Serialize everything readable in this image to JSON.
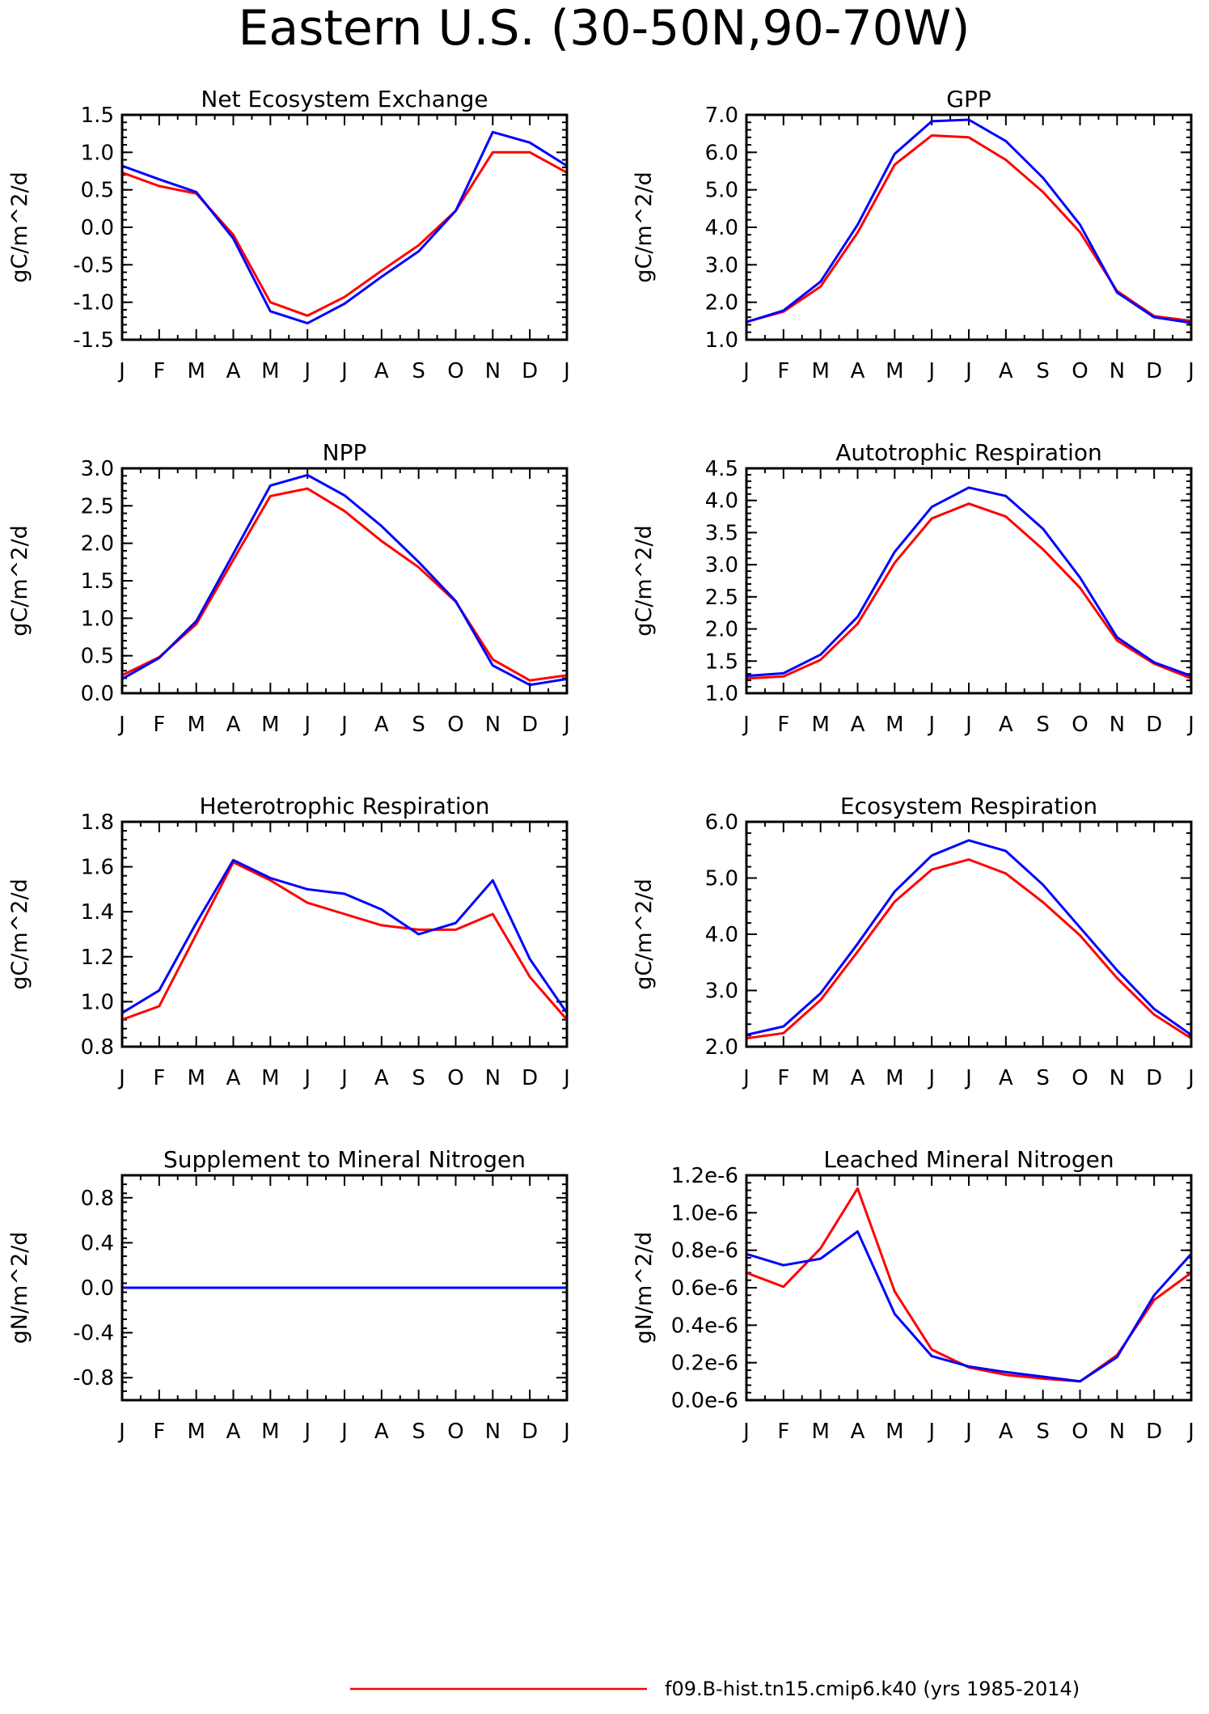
{
  "figure": {
    "title": "Eastern U.S. (30-50N,90-70W)",
    "legend": [
      {
        "label": "f09.B-hist.tn15.cmip6.k40 (yrs 1985-2014)",
        "color": "#ff0000"
      }
    ]
  },
  "chart_data": [
    {
      "type": "line",
      "title": "Net Ecosystem Exchange",
      "ylabel": "gC/m^2/d",
      "ylim": [
        -1.5,
        1.5
      ],
      "x": [
        "J",
        "F",
        "M",
        "A",
        "M",
        "J",
        "J",
        "A",
        "S",
        "O",
        "N",
        "D",
        "J"
      ],
      "yticks": [
        -1.5,
        -1.0,
        -0.5,
        0.0,
        0.5,
        1.0,
        1.5
      ],
      "ytick_labels": [
        "-1.5",
        "-1.0",
        "-0.5",
        "0.0",
        "0.5",
        "1.0",
        "1.5"
      ],
      "series": [
        {
          "color": "#ff0000",
          "values": [
            0.73,
            0.55,
            0.45,
            -0.1,
            -1.0,
            -1.18,
            -0.93,
            -0.58,
            -0.24,
            0.22,
            1.0,
            1.0,
            0.73
          ]
        },
        {
          "color": "#0000ff",
          "values": [
            0.82,
            0.64,
            0.47,
            -0.15,
            -1.12,
            -1.28,
            -1.02,
            -0.66,
            -0.32,
            0.22,
            1.27,
            1.13,
            0.82
          ]
        }
      ]
    },
    {
      "type": "line",
      "title": "GPP",
      "ylabel": "gC/m^2/d",
      "ylim": [
        1.0,
        7.0
      ],
      "x": [
        "J",
        "F",
        "M",
        "A",
        "M",
        "J",
        "J",
        "A",
        "S",
        "O",
        "N",
        "D",
        "J"
      ],
      "yticks": [
        1,
        2,
        3,
        4,
        5,
        6,
        7
      ],
      "ytick_labels": [
        "1.0",
        "2.0",
        "3.0",
        "4.0",
        "5.0",
        "6.0",
        "7.0"
      ],
      "series": [
        {
          "color": "#ff0000",
          "values": [
            1.48,
            1.75,
            2.42,
            3.86,
            5.67,
            6.45,
            6.4,
            5.8,
            4.94,
            3.87,
            2.3,
            1.63,
            1.5
          ]
        },
        {
          "color": "#0000ff",
          "values": [
            1.47,
            1.78,
            2.55,
            4.07,
            5.96,
            6.83,
            6.87,
            6.3,
            5.32,
            4.07,
            2.26,
            1.6,
            1.45
          ]
        }
      ]
    },
    {
      "type": "line",
      "title": "NPP",
      "ylabel": "gC/m^2/d",
      "ylim": [
        0.0,
        3.0
      ],
      "x": [
        "J",
        "F",
        "M",
        "A",
        "M",
        "J",
        "J",
        "A",
        "S",
        "O",
        "N",
        "D",
        "J"
      ],
      "yticks": [
        0,
        0.5,
        1.0,
        1.5,
        2.0,
        2.5,
        3.0
      ],
      "ytick_labels": [
        "0.0",
        "0.5",
        "1.0",
        "1.5",
        "2.0",
        "2.5",
        "3.0"
      ],
      "series": [
        {
          "color": "#ff0000",
          "values": [
            0.24,
            0.48,
            0.92,
            1.78,
            2.63,
            2.73,
            2.43,
            2.03,
            1.68,
            1.22,
            0.45,
            0.17,
            0.24
          ]
        },
        {
          "color": "#0000ff",
          "values": [
            0.19,
            0.47,
            0.96,
            1.86,
            2.77,
            2.91,
            2.64,
            2.23,
            1.75,
            1.23,
            0.37,
            0.11,
            0.19
          ]
        }
      ]
    },
    {
      "type": "line",
      "title": "Autotrophic Respiration",
      "ylabel": "gC/m^2/d",
      "ylim": [
        1.0,
        4.5
      ],
      "x": [
        "J",
        "F",
        "M",
        "A",
        "M",
        "J",
        "J",
        "A",
        "S",
        "O",
        "N",
        "D",
        "J"
      ],
      "yticks": [
        1.0,
        1.5,
        2.0,
        2.5,
        3.0,
        3.5,
        4.0,
        4.5
      ],
      "ytick_labels": [
        "1.0",
        "1.5",
        "2.0",
        "2.5",
        "3.0",
        "3.5",
        "4.0",
        "4.5"
      ],
      "series": [
        {
          "color": "#ff0000",
          "values": [
            1.23,
            1.26,
            1.52,
            2.08,
            3.03,
            3.72,
            3.95,
            3.75,
            3.24,
            2.64,
            1.82,
            1.46,
            1.23
          ]
        },
        {
          "color": "#0000ff",
          "values": [
            1.27,
            1.31,
            1.6,
            2.19,
            3.2,
            3.9,
            4.2,
            4.07,
            3.56,
            2.8,
            1.87,
            1.48,
            1.27
          ]
        }
      ]
    },
    {
      "type": "line",
      "title": "Heterotrophic Respiration",
      "ylabel": "gC/m^2/d",
      "ylim": [
        0.8,
        1.8
      ],
      "x": [
        "J",
        "F",
        "M",
        "A",
        "M",
        "J",
        "J",
        "A",
        "S",
        "O",
        "N",
        "D",
        "J"
      ],
      "yticks": [
        0.8,
        1.0,
        1.2,
        1.4,
        1.6,
        1.8
      ],
      "ytick_labels": [
        "0.8",
        "1.0",
        "1.2",
        "1.4",
        "1.6",
        "1.8"
      ],
      "series": [
        {
          "color": "#ff0000",
          "values": [
            0.92,
            0.98,
            1.3,
            1.62,
            1.54,
            1.44,
            1.39,
            1.34,
            1.32,
            1.32,
            1.39,
            1.11,
            0.92
          ]
        },
        {
          "color": "#0000ff",
          "values": [
            0.95,
            1.05,
            1.35,
            1.63,
            1.55,
            1.5,
            1.48,
            1.41,
            1.3,
            1.35,
            1.54,
            1.19,
            0.95
          ]
        }
      ]
    },
    {
      "type": "line",
      "title": "Ecosystem Respiration",
      "ylabel": "gC/m^2/d",
      "ylim": [
        2.0,
        6.0
      ],
      "x": [
        "J",
        "F",
        "M",
        "A",
        "M",
        "J",
        "J",
        "A",
        "S",
        "O",
        "N",
        "D",
        "J"
      ],
      "yticks": [
        2,
        3,
        4,
        5,
        6
      ],
      "ytick_labels": [
        "2.0",
        "3.0",
        "4.0",
        "5.0",
        "6.0"
      ],
      "series": [
        {
          "color": "#ff0000",
          "values": [
            2.15,
            2.24,
            2.83,
            3.69,
            4.58,
            5.15,
            5.33,
            5.08,
            4.57,
            3.98,
            3.22,
            2.57,
            2.15
          ]
        },
        {
          "color": "#0000ff",
          "values": [
            2.21,
            2.36,
            2.95,
            3.83,
            4.76,
            5.4,
            5.67,
            5.48,
            4.88,
            4.12,
            3.36,
            2.67,
            2.21
          ]
        }
      ]
    },
    {
      "type": "line",
      "title": "Supplement to Mineral Nitrogen",
      "ylabel": "gN/m^2/d",
      "ylim": [
        -1.0,
        1.0
      ],
      "x": [
        "J",
        "F",
        "M",
        "A",
        "M",
        "J",
        "J",
        "A",
        "S",
        "O",
        "N",
        "D",
        "J"
      ],
      "yticks": [
        -0.8,
        -0.4,
        0.0,
        0.4,
        0.8
      ],
      "ytick_labels": [
        "-0.8",
        "-0.4",
        "0.0",
        "0.4",
        "0.8"
      ],
      "series": [
        {
          "color": "#ff0000",
          "values": [
            0,
            0,
            0,
            0,
            0,
            0,
            0,
            0,
            0,
            0,
            0,
            0,
            0
          ]
        },
        {
          "color": "#0000ff",
          "values": [
            0,
            0,
            0,
            0,
            0,
            0,
            0,
            0,
            0,
            0,
            0,
            0,
            0
          ]
        }
      ]
    },
    {
      "type": "line",
      "title": "Leached Mineral Nitrogen",
      "ylabel": "gN/m^2/d",
      "ylim": [
        0.0,
        1.2e-06
      ],
      "x": [
        "J",
        "F",
        "M",
        "A",
        "M",
        "J",
        "J",
        "A",
        "S",
        "O",
        "N",
        "D",
        "J"
      ],
      "yticks": [
        0,
        2e-07,
        4e-07,
        6e-07,
        8e-07,
        1e-06,
        1.2e-06
      ],
      "ytick_labels": [
        "0.0e-6",
        "0.2e-6",
        "0.4e-6",
        "0.6e-6",
        "0.8e-6",
        "1.0e-6",
        "1.2e-6"
      ],
      "series": [
        {
          "color": "#ff0000",
          "values": [
            6.8e-07,
            6.05e-07,
            8.1e-07,
            1.13e-06,
            5.8e-07,
            2.7e-07,
            1.75e-07,
            1.35e-07,
            1.15e-07,
            1e-07,
            2.4e-07,
            5.35e-07,
            6.8e-07
          ]
        },
        {
          "color": "#0000ff",
          "values": [
            7.8e-07,
            7.2e-07,
            7.55e-07,
            9e-07,
            4.6e-07,
            2.35e-07,
            1.8e-07,
            1.5e-07,
            1.25e-07,
            1e-07,
            2.3e-07,
            5.6e-07,
            7.8e-07
          ]
        }
      ]
    }
  ]
}
